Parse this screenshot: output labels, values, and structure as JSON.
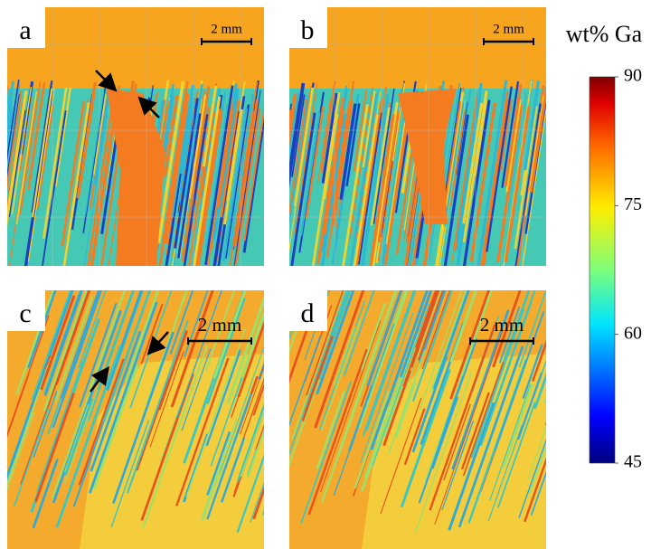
{
  "panels": [
    {
      "label": "a",
      "scale_bar": "2 mm"
    },
    {
      "label": "b",
      "scale_bar": "2 mm"
    },
    {
      "label": "c",
      "scale_bar": "2 mm"
    },
    {
      "label": "d",
      "scale_bar": "2 mm"
    }
  ],
  "colorbar": {
    "title": "wt% Ga",
    "range": [
      45,
      90
    ],
    "ticks": [
      90,
      75,
      60,
      45
    ]
  }
}
